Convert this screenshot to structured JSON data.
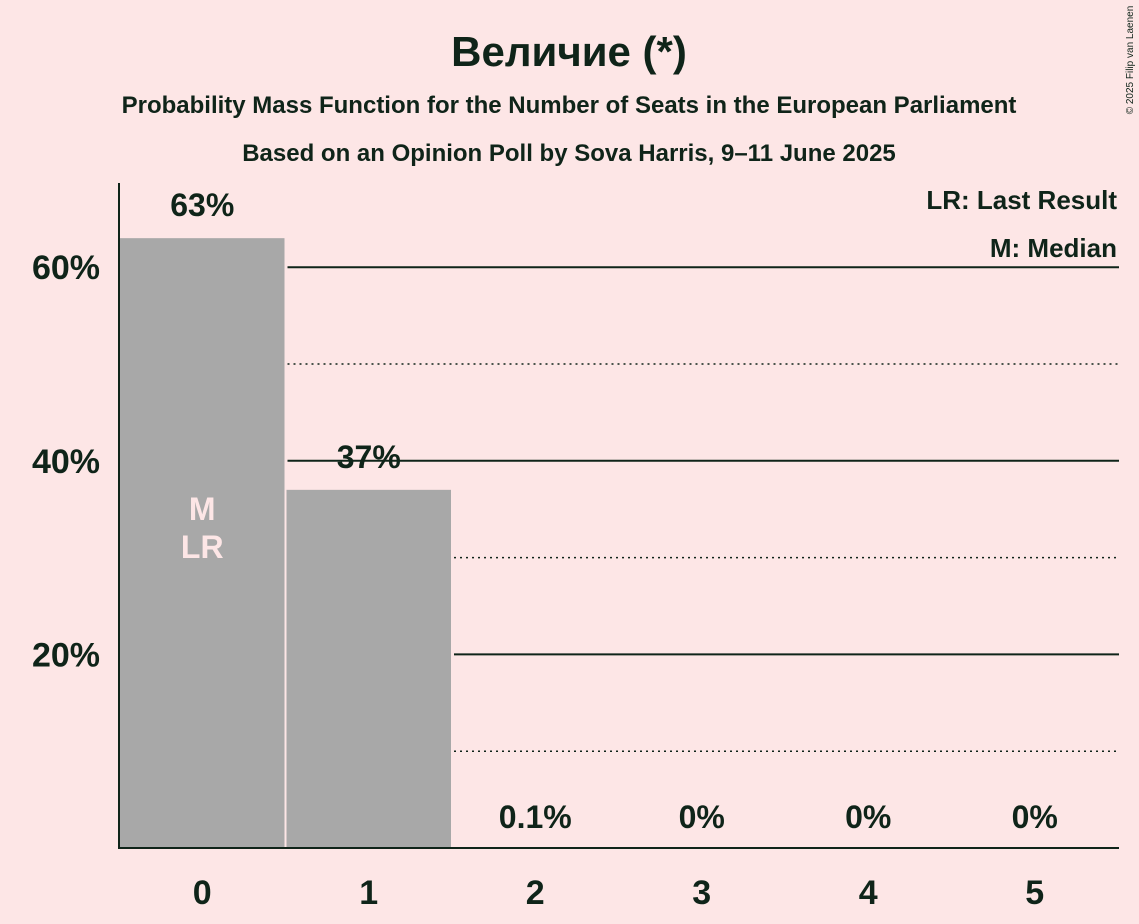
{
  "chart_data": {
    "type": "bar",
    "title": "Величие (*)",
    "subtitle1": "Probability Mass Function for the Number of Seats in the European Parliament",
    "subtitle2": "Based on an Opinion Poll by Sova Harris, 9–11 June 2025",
    "categories": [
      "0",
      "1",
      "2",
      "3",
      "4",
      "5"
    ],
    "values": [
      63,
      37,
      0.1,
      0,
      0,
      0
    ],
    "data_labels": [
      "63%",
      "37%",
      "0.1%",
      "0%",
      "0%",
      "0%"
    ],
    "bar_annotations": [
      [
        "M",
        "LR"
      ],
      [],
      [],
      [],
      [],
      []
    ],
    "ylim": [
      0,
      68.7
    ],
    "yticks": [
      {
        "value": 20,
        "label": "20%"
      },
      {
        "value": 40,
        "label": "40%"
      },
      {
        "value": 60,
        "label": "60%"
      }
    ],
    "minor_grid": [
      10,
      30,
      50
    ],
    "legend": [
      "LR: Last Result",
      "M: Median"
    ],
    "legend_position": "top-right",
    "copyright": "© 2025 Filip van Laenen",
    "bar_color": "#A8A8A8"
  }
}
